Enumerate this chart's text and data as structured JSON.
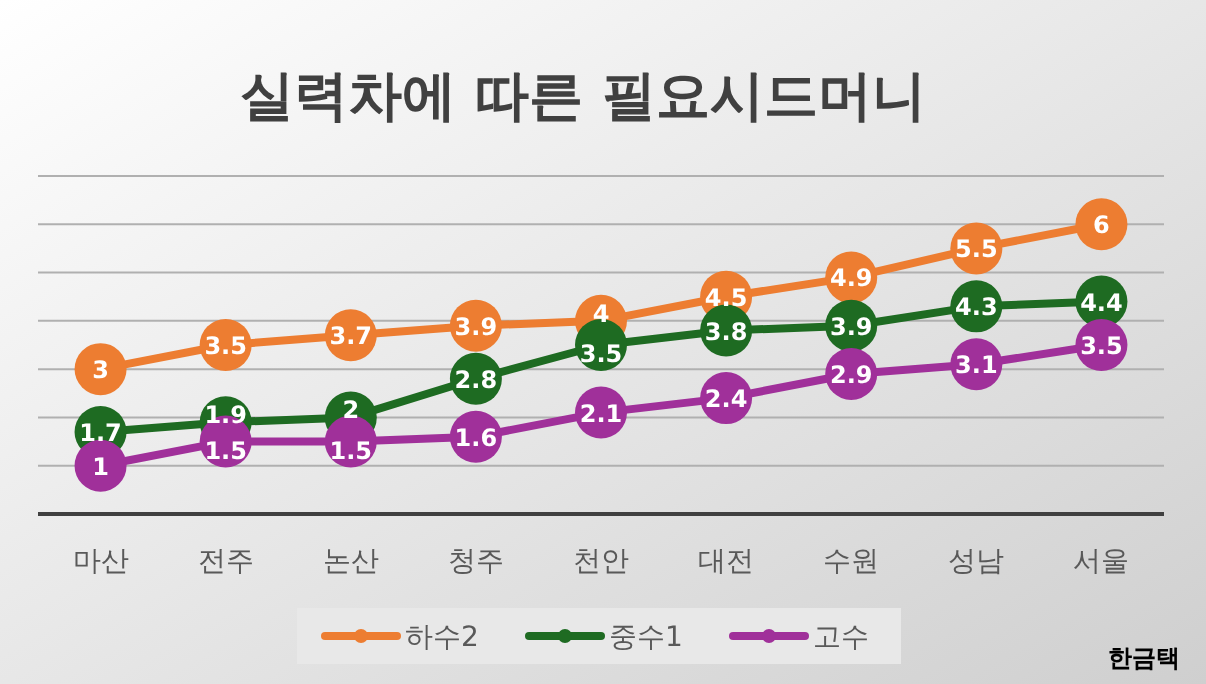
{
  "chart_data": {
    "type": "line",
    "title": "실력차에 따른 필요시드머니",
    "categories": [
      "마산",
      "전주",
      "논산",
      "청주",
      "천안",
      "대전",
      "수원",
      "성남",
      "서울"
    ],
    "series": [
      {
        "name": "하수2",
        "color": "#ed7d31",
        "values": [
          3,
          3.5,
          3.7,
          3.9,
          4,
          4.5,
          4.9,
          5.5,
          6
        ]
      },
      {
        "name": "중수1",
        "color": "#1e6b22",
        "values": [
          1.7,
          1.9,
          2,
          2.8,
          3.5,
          3.8,
          3.9,
          4.3,
          4.4
        ]
      },
      {
        "name": "고수",
        "color": "#a0309a",
        "values": [
          1,
          1.5,
          1.5,
          1.6,
          2.1,
          2.4,
          2.9,
          3.1,
          3.5
        ]
      }
    ],
    "ylim": [
      0,
      7
    ],
    "yticks": [
      {
        "value": 0,
        "label": null
      },
      {
        "value": 1,
        "label": null
      },
      {
        "value": 2,
        "label": null
      },
      {
        "value": 3,
        "label": null
      },
      {
        "value": 4,
        "label": null
      },
      {
        "value": 5,
        "label": null
      },
      {
        "value": 6,
        "label": null
      },
      {
        "value": 7,
        "label": null
      }
    ],
    "tick_labels": "x",
    "grid": "y",
    "legend": "bottom",
    "marker": "circle",
    "line_style": "solid",
    "data_labels": true,
    "annotations": [
      "한금택"
    ]
  }
}
